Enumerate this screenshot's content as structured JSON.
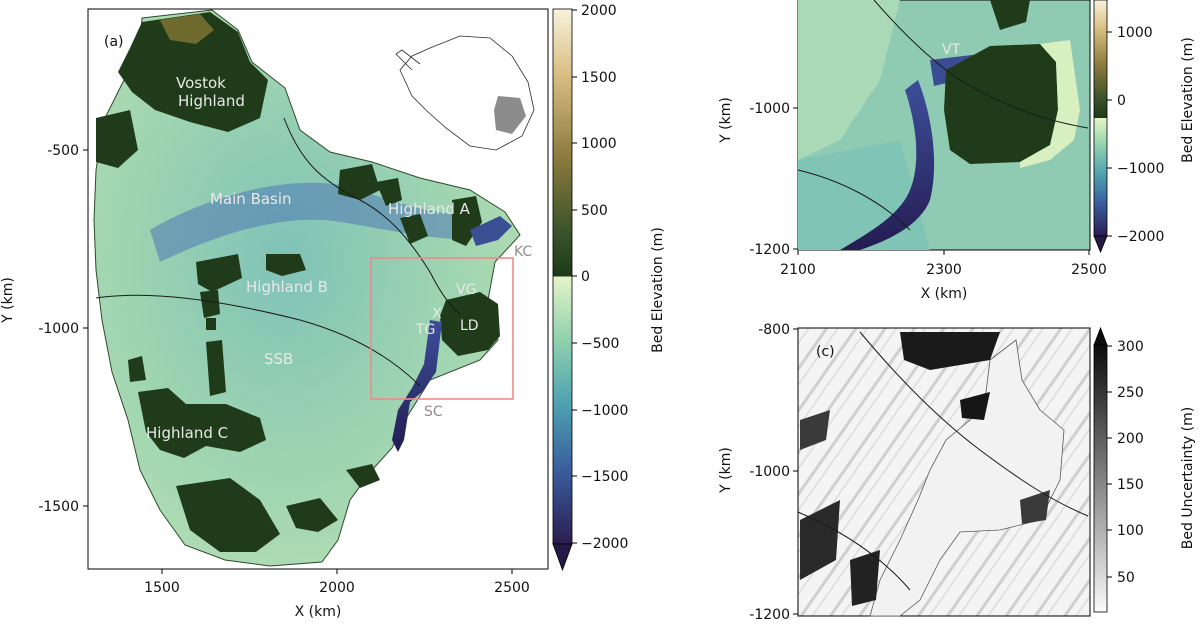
{
  "panel_a": {
    "letter": "(a)",
    "xlabel": "X (km)",
    "ylabel": "Y (km)",
    "xticks": [
      "1500",
      "2000",
      "2500"
    ],
    "yticks": [
      "-500",
      "-1000",
      "-1500"
    ],
    "regions": {
      "vostok": [
        "Vostok",
        "Highland"
      ],
      "main_basin": "Main Basin",
      "highland_a": "Highland A",
      "highland_b": "Highland B",
      "highland_c": "Highland C",
      "ssb": "SSB",
      "kc": "KC",
      "vg": "VG",
      "tg": "TG",
      "ld": "LD",
      "sc": "SC",
      "x": "X"
    }
  },
  "panel_b": {
    "xlabel": "X (km)",
    "ylabel": "Y (km)",
    "xticks": [
      "2100",
      "2300",
      "2500"
    ],
    "yticks": [
      "-1000",
      "-1200"
    ],
    "label_vt": "VT"
  },
  "panel_c": {
    "letter": "(c)",
    "ylabel": "Y (km)",
    "yticks": [
      "-800",
      "-1000",
      "-1200"
    ]
  },
  "colorbar_elevation": {
    "label": "Bed Elevation (m)",
    "ticks": [
      "2000",
      "1500",
      "1000",
      "500",
      "0",
      "−500",
      "−1000",
      "−1500",
      "−2000"
    ]
  },
  "colorbar_elevation_b": {
    "label": "Bed Elevation (m)",
    "ticks": [
      "1000",
      "0",
      "−1000",
      "−2000"
    ]
  },
  "colorbar_uncertainty": {
    "label": "Bed Uncertainty (m)",
    "ticks": [
      "300",
      "250",
      "200",
      "150",
      "100",
      "50"
    ]
  },
  "colors": {
    "deep": "#2a1f5a",
    "low": "#3f6fa8",
    "mid_low": "#6fb7b4",
    "near_zero": "#d8efc0",
    "highland": "#1f3b1a",
    "high": "#b08f4a",
    "peak": "#f6f1d8",
    "box": "#f08a8a"
  }
}
